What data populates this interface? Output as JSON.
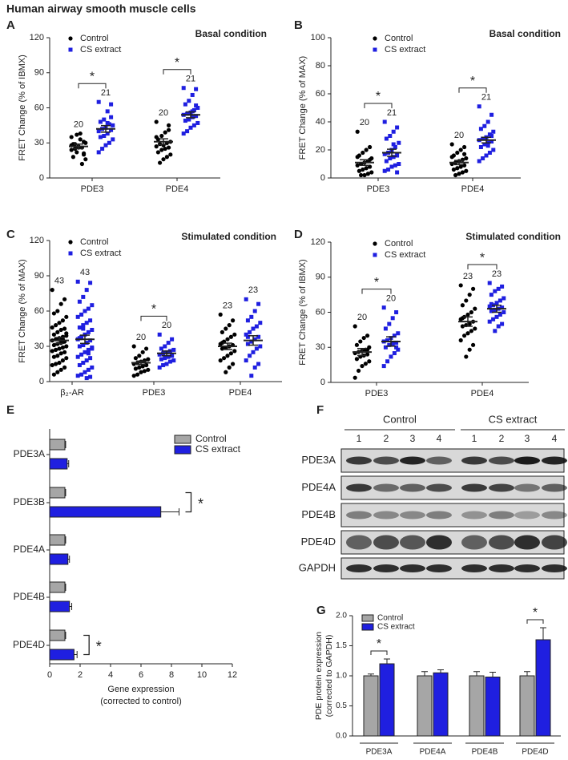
{
  "title": "Human airway smooth muscle cells",
  "chart_data": [
    {
      "type": "dot",
      "panel": "A",
      "title": "Basal condition",
      "ylabel": "FRET Change (% of IBMX)",
      "categories": [
        "PDE3",
        "PDE4"
      ],
      "ylim": [
        0,
        120
      ],
      "yticks": [
        0,
        30,
        60,
        90,
        120
      ],
      "series": [
        {
          "name": "Control",
          "color": "#000000",
          "marker": "circle",
          "values": [
            [
              24,
              20,
              38,
              37,
              29,
              30,
              26,
              27,
              25,
              28,
              31,
              33,
              22,
              18,
              16,
              12,
              26,
              29,
              35,
              21
            ],
            [
              48,
              45,
              39,
              36,
              33,
              31,
              30,
              28,
              29,
              27,
              26,
              25,
              24,
              22,
              20,
              18,
              16,
              13,
              35,
              41
            ]
          ],
          "means": [
            27,
            31
          ],
          "sems": [
            2,
            2.5
          ],
          "n": [
            20,
            20
          ]
        },
        {
          "name": "CS extract",
          "color": "#1f1fe0",
          "marker": "square",
          "values": [
            [
              65,
              63,
              57,
              50,
              48,
              45,
              46,
              43,
              42,
              40,
              41,
              38,
              36,
              35,
              33,
              30,
              28,
              25,
              22,
              52,
              47
            ],
            [
              77,
              76,
              71,
              66,
              63,
              60,
              58,
              56,
              55,
              54,
              53,
              52,
              50,
              49,
              47,
              45,
              43,
              40,
              38,
              62,
              57
            ]
          ],
          "means": [
            42,
            54
          ],
          "sems": [
            2.8,
            2.5
          ],
          "n": [
            21,
            21
          ]
        }
      ],
      "significance": [
        {
          "category": 0,
          "label": "*"
        },
        {
          "category": 1,
          "label": "*"
        }
      ]
    },
    {
      "type": "dot",
      "panel": "B",
      "title": "Basal condition",
      "ylabel": "FRET Change (% of MAX)",
      "categories": [
        "PDE3",
        "PDE4"
      ],
      "ylim": [
        0,
        100
      ],
      "yticks": [
        0,
        20,
        40,
        60,
        80,
        100
      ],
      "series": [
        {
          "name": "Control",
          "color": "#000000",
          "marker": "circle",
          "values": [
            [
              33,
              22,
              20,
              18,
              16,
              14,
              12,
              11,
              10,
              9,
              8,
              7,
              6,
              5,
              4,
              3,
              2,
              2,
              15,
              13
            ],
            [
              24,
              22,
              20,
              18,
              16,
              14,
              13,
              12,
              11,
              10,
              9,
              8,
              7,
              6,
              5,
              4,
              3,
              2,
              15,
              17
            ]
          ],
          "means": [
            11,
            11
          ],
          "sems": [
            2,
            1.5
          ],
          "n": [
            20,
            20
          ]
        },
        {
          "name": "CS extract",
          "color": "#1f1fe0",
          "marker": "square",
          "values": [
            [
              40,
              36,
              33,
              30,
              28,
              25,
              22,
              20,
              18,
              17,
              16,
              15,
              14,
              12,
              10,
              9,
              8,
              6,
              5,
              4,
              24
            ],
            [
              51,
              45,
              40,
              37,
              35,
              33,
              31,
              29,
              28,
              27,
              26,
              25,
              24,
              22,
              20,
              18,
              16,
              14,
              12,
              30,
              23
            ]
          ],
          "means": [
            18,
            27
          ],
          "sems": [
            2.5,
            2
          ],
          "n": [
            21,
            21
          ]
        }
      ],
      "significance": [
        {
          "category": 0,
          "label": "*"
        },
        {
          "category": 1,
          "label": "*"
        }
      ]
    },
    {
      "type": "dot",
      "panel": "C",
      "title": "Stimulated condition",
      "ylabel": "FRET Change (% of MAX)",
      "categories": [
        "β₂-AR",
        "PDE3",
        "PDE4"
      ],
      "ylim": [
        0,
        120
      ],
      "yticks": [
        0,
        30,
        60,
        90,
        120
      ],
      "series": [
        {
          "name": "Control",
          "color": "#000000",
          "marker": "circle",
          "values": [
            [
              78,
              70,
              66,
              60,
              58,
              55,
              52,
              50,
              48,
              46,
              45,
              44,
              42,
              40,
              39,
              38,
              37,
              36,
              35,
              34,
              33,
              32,
              31,
              30,
              29,
              28,
              27,
              26,
              25,
              24,
              22,
              21,
              20,
              18,
              16,
              15,
              14,
              12,
              10,
              8,
              6,
              41,
              36
            ],
            [
              30,
              28,
              25,
              22,
              20,
              19,
              18,
              17,
              16,
              15,
              14,
              13,
              12,
              11,
              10,
              9,
              8,
              6,
              5,
              14
            ],
            [
              57,
              52,
              48,
              45,
              42,
              40,
              38,
              36,
              34,
              32,
              31,
              30,
              29,
              28,
              26,
              24,
              22,
              20,
              18,
              15,
              12,
              8,
              33
            ]
          ],
          "means": [
            35,
            16,
            30
          ],
          "sems": [
            2.5,
            1.5,
            2.7
          ],
          "n": [
            43,
            20,
            23
          ]
        },
        {
          "name": "CS extract",
          "color": "#1f1fe0",
          "marker": "square",
          "values": [
            [
              85,
              84,
              78,
              72,
              68,
              65,
              62,
              60,
              57,
              55,
              52,
              50,
              48,
              46,
              44,
              42,
              40,
              38,
              36,
              35,
              33,
              31,
              30,
              28,
              27,
              25,
              23,
              21,
              20,
              18,
              16,
              14,
              12,
              10,
              8,
              6,
              5,
              4,
              3,
              45,
              37,
              29,
              24
            ],
            [
              40,
              36,
              33,
              30,
              28,
              27,
              26,
              25,
              24,
              23,
              22,
              21,
              20,
              19,
              18,
              17,
              15,
              14,
              12,
              22
            ],
            [
              70,
              66,
              60,
              55,
              52,
              50,
              47,
              45,
              42,
              40,
              38,
              36,
              34,
              32,
              30,
              28,
              25,
              22,
              18,
              15,
              12,
              5,
              38
            ]
          ],
          "means": [
            36,
            24,
            35
          ],
          "sems": [
            3.5,
            2,
            4
          ],
          "n": [
            43,
            20,
            23
          ]
        }
      ],
      "significance": [
        {
          "category": 1,
          "label": "*"
        }
      ]
    },
    {
      "type": "dot",
      "panel": "D",
      "title": "Stimulated condition",
      "ylabel": "FRET Change (% of IBMX)",
      "categories": [
        "PDE3",
        "PDE4"
      ],
      "ylim": [
        0,
        120
      ],
      "yticks": [
        0,
        30,
        60,
        90,
        120
      ],
      "series": [
        {
          "name": "Control",
          "color": "#000000",
          "marker": "circle",
          "values": [
            [
              48,
              40,
              38,
              35,
              32,
              30,
              28,
              27,
              26,
              25,
              24,
              23,
              22,
              20,
              18,
              16,
              14,
              10,
              4,
              28
            ],
            [
              83,
              80,
              75,
              70,
              66,
              63,
              60,
              58,
              56,
              54,
              52,
              50,
              49,
              48,
              46,
              44,
              42,
              40,
              36,
              32,
              28,
              22,
              55
            ]
          ],
          "means": [
            26,
            52
          ],
          "sems": [
            3,
            4
          ],
          "n": [
            20,
            23
          ]
        },
        {
          "name": "CS extract",
          "color": "#1f1fe0",
          "marker": "square",
          "values": [
            [
              64,
              60,
              55,
              50,
              46,
              42,
              40,
              38,
              36,
              35,
              34,
              33,
              32,
              30,
              28,
              25,
              22,
              18,
              14,
              30
            ],
            [
              85,
              82,
              80,
              78,
              75,
              72,
              70,
              68,
              66,
              65,
              64,
              63,
              62,
              61,
              60,
              58,
              56,
              54,
              52,
              50,
              48,
              44,
              67
            ]
          ],
          "means": [
            35,
            63
          ],
          "sems": [
            4,
            3
          ],
          "n": [
            20,
            23
          ]
        }
      ],
      "significance": [
        {
          "category": 0,
          "label": "*"
        },
        {
          "category": 1,
          "label": "*"
        }
      ]
    },
    {
      "type": "hbar",
      "panel": "E",
      "categories": [
        "PDE3A",
        "PDE3B",
        "PDE4A",
        "PDE4B",
        "PDE4D"
      ],
      "xlabel": [
        "Gene expression",
        "(corrected to control)"
      ],
      "xlim": [
        0,
        12
      ],
      "xticks": [
        0,
        2,
        4,
        6,
        8,
        10,
        12
      ],
      "series": [
        {
          "name": "Control",
          "color": "#a6a6a6",
          "values": [
            1,
            1,
            1,
            1,
            1
          ],
          "errors": [
            0.05,
            0.05,
            0.05,
            0.05,
            0.05
          ]
        },
        {
          "name": "CS extract",
          "color": "#1f1fe0",
          "values": [
            1.15,
            7.3,
            1.2,
            1.3,
            1.6
          ],
          "errors": [
            0.1,
            1.2,
            0.1,
            0.15,
            0.2
          ]
        }
      ],
      "significance": [
        {
          "category": 1,
          "label": "*"
        },
        {
          "category": 4,
          "label": "*"
        }
      ]
    },
    {
      "type": "bar",
      "panel": "G",
      "categories": [
        "PDE3A",
        "PDE4A",
        "PDE4B",
        "PDE4D"
      ],
      "ylabel": [
        "PDE protein expression",
        "(corrected to GAPDH)"
      ],
      "ylim": [
        0,
        2
      ],
      "yticks": [
        {
          "value": 0,
          "label": "0.0"
        },
        0.5,
        {
          "value": 1,
          "label": "1.0"
        },
        1.5,
        {
          "value": 2,
          "label": "2.0"
        }
      ],
      "series": [
        {
          "name": "Control",
          "color": "#a6a6a6",
          "values": [
            1,
            1,
            1,
            1
          ],
          "errors": [
            0.03,
            0.07,
            0.07,
            0.07
          ]
        },
        {
          "name": "CS extract",
          "color": "#1f1fe0",
          "values": [
            1.2,
            1.05,
            0.98,
            1.6
          ],
          "errors": [
            0.08,
            0.05,
            0.08,
            0.2
          ]
        }
      ],
      "significance": [
        {
          "category": 0,
          "label": "*"
        },
        {
          "category": 3,
          "label": "*"
        }
      ]
    }
  ],
  "blot": {
    "panel": "F",
    "groups": [
      "Control",
      "CS extract"
    ],
    "lanes": [
      1,
      2,
      3,
      4,
      1,
      2,
      3,
      4
    ],
    "rows": [
      "PDE3A",
      "PDE4A",
      "PDE4B",
      "PDE4D",
      "GAPDH"
    ]
  }
}
